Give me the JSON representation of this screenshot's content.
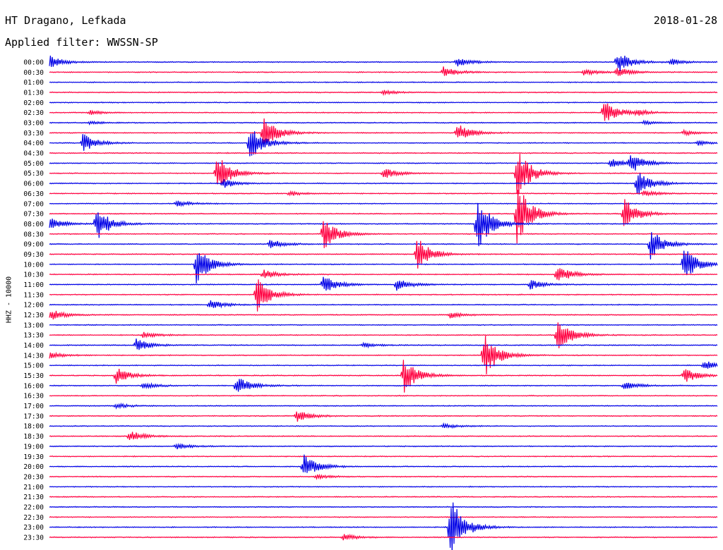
{
  "station": "HT Dragano, Lefkada",
  "date": "2018-01-28",
  "filter_text": "Applied filter: WWSSN-SP",
  "channel_label": "HHZ - 10000",
  "colors": {
    "trace_a": "#0000e6",
    "trace_b": "#ff0040"
  },
  "chart_data": {
    "type": "line",
    "title": "HT Dragano, Lefkada",
    "subtitle": "Applied filter: WWSSN-SP",
    "ylabel": "HHZ - 10000",
    "xlabel": "",
    "grid": false,
    "legend": "none",
    "tick_labels": [
      "00:00",
      "00:30",
      "01:00",
      "01:30",
      "02:00",
      "02:30",
      "03:00",
      "03:30",
      "04:00",
      "04:30",
      "05:00",
      "05:30",
      "06:00",
      "06:30",
      "07:00",
      "07:30",
      "08:00",
      "08:30",
      "09:00",
      "09:30",
      "10:00",
      "10:30",
      "11:00",
      "11:30",
      "12:00",
      "12:30",
      "13:00",
      "13:30",
      "14:00",
      "14:30",
      "15:00",
      "15:30",
      "16:00",
      "16:30",
      "17:00",
      "17:30",
      "18:00",
      "18:30",
      "19:00",
      "19:30",
      "20:00",
      "20:30",
      "21:00",
      "21:30",
      "22:00",
      "22:30",
      "23:00",
      "23:30"
    ],
    "events": [
      {
        "row": 0,
        "t": 0.0,
        "amp": 0.4
      },
      {
        "row": 0,
        "t": 0.61,
        "amp": 0.3
      },
      {
        "row": 0,
        "t": 0.85,
        "amp": 0.7
      },
      {
        "row": 0,
        "t": 0.93,
        "amp": 0.2
      },
      {
        "row": 1,
        "t": 0.59,
        "amp": 0.35
      },
      {
        "row": 1,
        "t": 0.8,
        "amp": 0.2
      },
      {
        "row": 1,
        "t": 0.85,
        "amp": 0.3
      },
      {
        "row": 3,
        "t": 0.5,
        "amp": 0.15
      },
      {
        "row": 5,
        "t": 0.06,
        "amp": 0.15
      },
      {
        "row": 5,
        "t": 0.83,
        "amp": 0.8
      },
      {
        "row": 5,
        "t": 0.88,
        "amp": 0.15
      },
      {
        "row": 6,
        "t": 0.06,
        "amp": 0.1
      },
      {
        "row": 6,
        "t": 0.89,
        "amp": 0.1
      },
      {
        "row": 7,
        "t": 0.32,
        "amp": 1.1
      },
      {
        "row": 7,
        "t": 0.61,
        "amp": 0.6
      },
      {
        "row": 7,
        "t": 0.95,
        "amp": 0.15
      },
      {
        "row": 8,
        "t": 0.05,
        "amp": 0.6
      },
      {
        "row": 8,
        "t": 0.3,
        "amp": 1.2
      },
      {
        "row": 8,
        "t": 0.97,
        "amp": 0.15
      },
      {
        "row": 10,
        "t": 0.87,
        "amp": 0.6
      },
      {
        "row": 10,
        "t": 0.84,
        "amp": 0.3
      },
      {
        "row": 11,
        "t": 0.25,
        "amp": 1.3
      },
      {
        "row": 11,
        "t": 0.5,
        "amp": 0.35
      },
      {
        "row": 11,
        "t": 0.7,
        "amp": 1.6
      },
      {
        "row": 12,
        "t": 0.26,
        "amp": 0.3
      },
      {
        "row": 12,
        "t": 0.88,
        "amp": 0.8
      },
      {
        "row": 13,
        "t": 0.36,
        "amp": 0.15
      },
      {
        "row": 13,
        "t": 0.89,
        "amp": 0.2
      },
      {
        "row": 14,
        "t": 0.19,
        "amp": 0.2
      },
      {
        "row": 15,
        "t": 0.7,
        "amp": 2.0
      },
      {
        "row": 15,
        "t": 0.86,
        "amp": 1.0
      },
      {
        "row": 16,
        "t": 0.0,
        "amp": 0.4
      },
      {
        "row": 16,
        "t": 0.07,
        "amp": 1.1
      },
      {
        "row": 16,
        "t": 0.64,
        "amp": 1.8
      },
      {
        "row": 17,
        "t": 0.41,
        "amp": 1.0
      },
      {
        "row": 18,
        "t": 0.33,
        "amp": 0.3
      },
      {
        "row": 18,
        "t": 0.9,
        "amp": 1.0
      },
      {
        "row": 19,
        "t": 0.55,
        "amp": 1.1
      },
      {
        "row": 20,
        "t": 0.22,
        "amp": 1.2
      },
      {
        "row": 20,
        "t": 0.95,
        "amp": 1.1
      },
      {
        "row": 21,
        "t": 0.32,
        "amp": 0.3
      },
      {
        "row": 21,
        "t": 0.76,
        "amp": 0.6
      },
      {
        "row": 22,
        "t": 0.41,
        "amp": 0.6
      },
      {
        "row": 22,
        "t": 0.52,
        "amp": 0.4
      },
      {
        "row": 22,
        "t": 0.72,
        "amp": 0.3
      },
      {
        "row": 23,
        "t": 0.31,
        "amp": 1.1
      },
      {
        "row": 24,
        "t": 0.24,
        "amp": 0.3
      },
      {
        "row": 25,
        "t": 0.0,
        "amp": 0.4
      },
      {
        "row": 25,
        "t": 0.6,
        "amp": 0.2
      },
      {
        "row": 27,
        "t": 0.14,
        "amp": 0.2
      },
      {
        "row": 27,
        "t": 0.76,
        "amp": 1.1
      },
      {
        "row": 28,
        "t": 0.13,
        "amp": 0.4
      },
      {
        "row": 28,
        "t": 0.47,
        "amp": 0.15
      },
      {
        "row": 29,
        "t": 0.0,
        "amp": 0.2
      },
      {
        "row": 29,
        "t": 0.65,
        "amp": 1.5
      },
      {
        "row": 30,
        "t": 0.98,
        "amp": 0.3
      },
      {
        "row": 31,
        "t": 0.1,
        "amp": 0.5
      },
      {
        "row": 31,
        "t": 0.53,
        "amp": 1.2
      },
      {
        "row": 31,
        "t": 0.95,
        "amp": 0.5
      },
      {
        "row": 32,
        "t": 0.14,
        "amp": 0.2
      },
      {
        "row": 32,
        "t": 0.28,
        "amp": 0.6
      },
      {
        "row": 32,
        "t": 0.86,
        "amp": 0.3
      },
      {
        "row": 34,
        "t": 0.1,
        "amp": 0.15
      },
      {
        "row": 35,
        "t": 0.37,
        "amp": 0.4
      },
      {
        "row": 36,
        "t": 0.59,
        "amp": 0.15
      },
      {
        "row": 37,
        "t": 0.12,
        "amp": 0.35
      },
      {
        "row": 38,
        "t": 0.19,
        "amp": 0.2
      },
      {
        "row": 40,
        "t": 0.38,
        "amp": 0.8
      },
      {
        "row": 41,
        "t": 0.4,
        "amp": 0.15
      },
      {
        "row": 46,
        "t": 0.6,
        "amp": 2.0
      },
      {
        "row": 47,
        "t": 0.44,
        "amp": 0.2
      }
    ]
  }
}
